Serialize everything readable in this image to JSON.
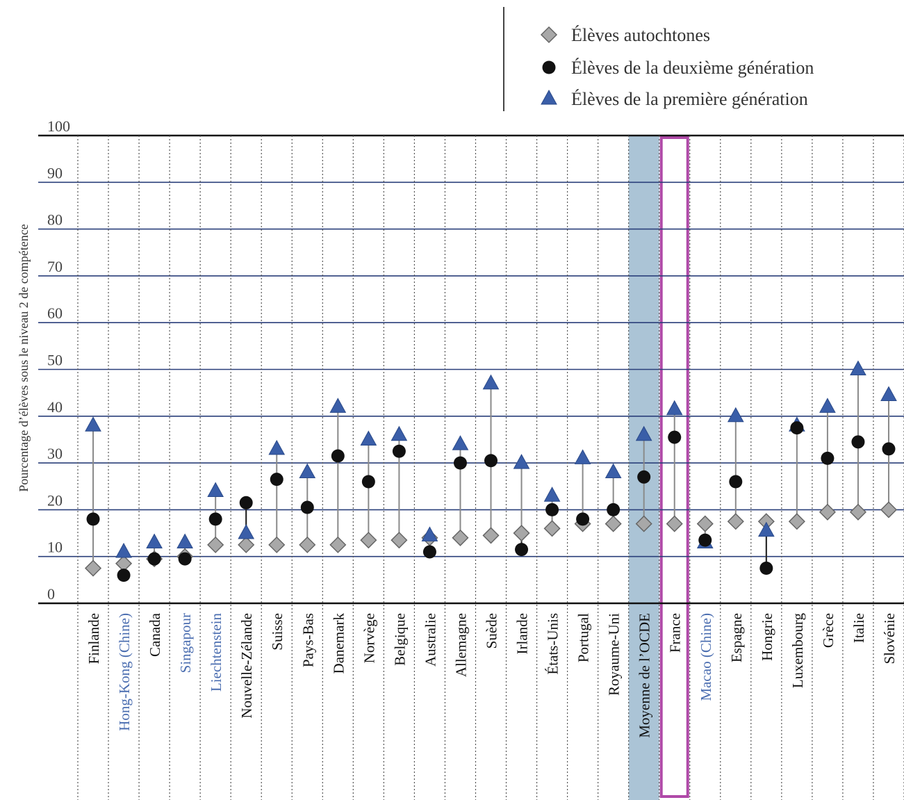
{
  "chart_data": {
    "type": "scatter",
    "ylabel": "Pourcentage d’élèves sous le niveau 2 de compétence",
    "ylim": [
      0,
      100
    ],
    "yticks": [
      0,
      10,
      20,
      30,
      40,
      50,
      60,
      70,
      80,
      90,
      100
    ],
    "grid": true,
    "legend_position": "top-right",
    "highlight_band": "Moyenne de l’OCDE",
    "highlight_box": "France",
    "colors": {
      "autochtones": "#a8a8a8",
      "deuxieme": "#111111",
      "premiere": "#3a5ea8",
      "partner_label": "#4a6db0",
      "oecd_band": "#8fb0c8",
      "france_box": "#b04aa8",
      "grid": "#2a3f7a"
    },
    "categories": [
      {
        "label": "Finlande",
        "partner": false
      },
      {
        "label": "Hong-Kong (Chine)",
        "partner": true
      },
      {
        "label": "Canada",
        "partner": false
      },
      {
        "label": "Singapour",
        "partner": true
      },
      {
        "label": "Liechtenstein",
        "partner": true
      },
      {
        "label": "Nouvelle-Zélande",
        "partner": false
      },
      {
        "label": "Suisse",
        "partner": false
      },
      {
        "label": "Pays-Bas",
        "partner": false
      },
      {
        "label": "Danemark",
        "partner": false
      },
      {
        "label": "Norvège",
        "partner": false
      },
      {
        "label": "Belgique",
        "partner": false
      },
      {
        "label": "Australie",
        "partner": false
      },
      {
        "label": "Allemagne",
        "partner": false
      },
      {
        "label": "Suède",
        "partner": false
      },
      {
        "label": "Irlande",
        "partner": false
      },
      {
        "label": "États-Unis",
        "partner": false
      },
      {
        "label": "Portugal",
        "partner": false
      },
      {
        "label": "Royaume-Uni",
        "partner": false
      },
      {
        "label": "Moyenne de l’OCDE",
        "partner": false
      },
      {
        "label": "France",
        "partner": false
      },
      {
        "label": "Macao (Chine)",
        "partner": true
      },
      {
        "label": "Espagne",
        "partner": false
      },
      {
        "label": "Hongrie",
        "partner": false
      },
      {
        "label": "Luxembourg",
        "partner": false
      },
      {
        "label": "Grèce",
        "partner": false
      },
      {
        "label": "Italie",
        "partner": false
      },
      {
        "label": "Slovénie",
        "partner": false
      }
    ],
    "series": [
      {
        "name": "Élèves autochtones",
        "marker": "diamond",
        "values": [
          7.5,
          8.5,
          9.5,
          10,
          12.5,
          12.5,
          12.5,
          12.5,
          12.5,
          13.5,
          13.5,
          14,
          14,
          14.5,
          15,
          16,
          17,
          17,
          17,
          17,
          17,
          17.5,
          17.5,
          17.5,
          19.5,
          19.5,
          20
        ]
      },
      {
        "name": "Élèves de la deuxième génération",
        "marker": "circle",
        "values": [
          18,
          6,
          9.5,
          9.5,
          18,
          21.5,
          26.5,
          20.5,
          31.5,
          26,
          32.5,
          11,
          30,
          30.5,
          11.5,
          20,
          18,
          20,
          27,
          35.5,
          13.5,
          26,
          7.5,
          37.5,
          31,
          34.5,
          33
        ]
      },
      {
        "name": "Élèves de la première génération",
        "marker": "triangle",
        "values": [
          38,
          11,
          13,
          13,
          24,
          15,
          33,
          28,
          42,
          35,
          36,
          14.5,
          34,
          47,
          30,
          23,
          31,
          28,
          36,
          41.5,
          13,
          40,
          15.5,
          38,
          42,
          50,
          44.5
        ]
      }
    ]
  }
}
